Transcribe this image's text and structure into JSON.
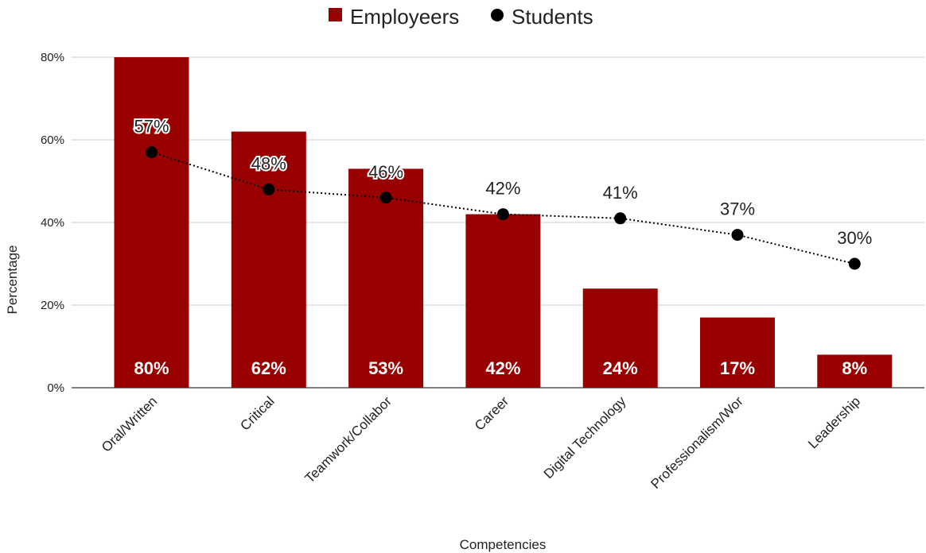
{
  "chart_data": {
    "type": "bar",
    "categories": [
      "Oral/Written",
      "Critical",
      "Teamwork/Collabor",
      "Career",
      "Digital Technology",
      "Professionalism/Wor",
      "Leadership"
    ],
    "series": [
      {
        "name": "Employeers",
        "type": "bar",
        "color": "#990000",
        "values": [
          80,
          62,
          53,
          42,
          24,
          17,
          8
        ],
        "labels": [
          "80%",
          "62%",
          "53%",
          "42%",
          "24%",
          "17%",
          "8%"
        ]
      },
      {
        "name": "Students",
        "type": "line",
        "color": "#000000",
        "line_style": "dotted",
        "values": [
          57,
          48,
          46,
          42,
          41,
          37,
          30
        ],
        "labels": [
          "57%",
          "48%",
          "46%",
          "42%",
          "41%",
          "37%",
          "30%"
        ]
      }
    ],
    "xlabel": "Competencies",
    "ylabel": "Percentage",
    "ylim": [
      0,
      80
    ],
    "yticks": [
      0,
      20,
      40,
      60,
      80
    ],
    "ytick_labels": [
      "0%",
      "20%",
      "40%",
      "60%",
      "80%"
    ],
    "grid": true,
    "legend_position": "top-center"
  }
}
